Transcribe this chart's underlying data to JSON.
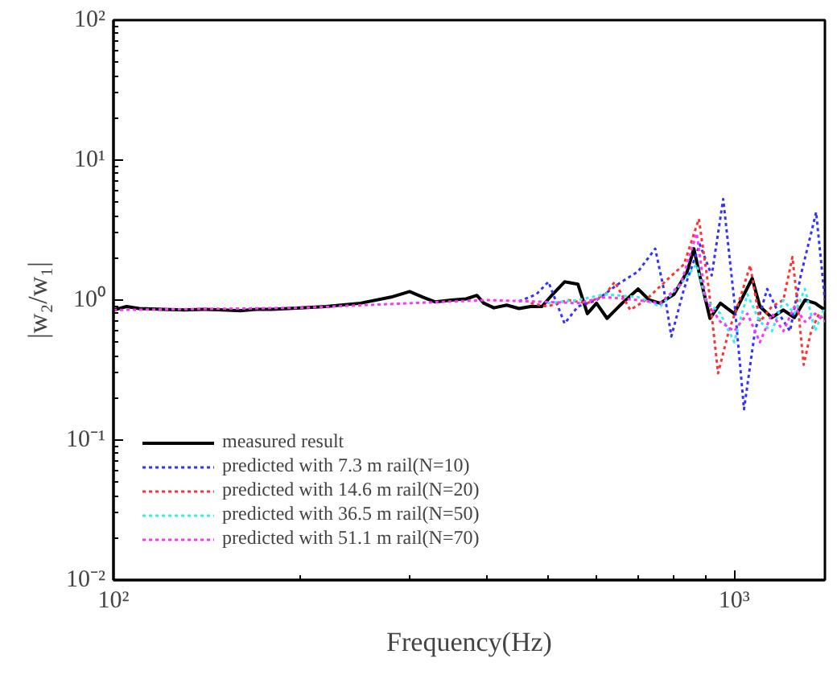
{
  "chart_data": {
    "type": "line",
    "xlabel": "Frequency(Hz)",
    "ylabel": "|w₂/w₁|",
    "log": "xy",
    "grid": false,
    "legend": "bottom left",
    "marker": "none",
    "xlim": [
      100,
      1400
    ],
    "ylim": [
      0.01,
      100
    ],
    "xticks": [
      {
        "value": 100,
        "label": "10²"
      },
      {
        "value": 1000,
        "label": "10³"
      }
    ],
    "yticks": [
      {
        "value": 0.01,
        "label": "10⁻²"
      },
      {
        "value": 0.1,
        "label": "10⁻¹"
      },
      {
        "value": 1,
        "label": "10⁰"
      },
      {
        "value": 10,
        "label": "10¹"
      },
      {
        "value": 100,
        "label": "10²"
      }
    ],
    "series": [
      {
        "name": "measured result",
        "color": "#000000",
        "line_style": "solid",
        "x": [
          100,
          105,
          110,
          120,
          130,
          140,
          150,
          160,
          170,
          180,
          200,
          220,
          250,
          280,
          300,
          315,
          330,
          350,
          370,
          385,
          395,
          410,
          430,
          450,
          470,
          490,
          510,
          533,
          560,
          580,
          600,
          624,
          660,
          700,
          730,
          760,
          800,
          840,
          861,
          880,
          914,
          950,
          1000,
          1069,
          1100,
          1150,
          1200,
          1250,
          1300,
          1350,
          1400
        ],
        "values": [
          0.85,
          0.9,
          0.87,
          0.86,
          0.85,
          0.86,
          0.85,
          0.84,
          0.86,
          0.86,
          0.88,
          0.9,
          0.95,
          1.05,
          1.15,
          1.05,
          0.97,
          1.0,
          1.02,
          1.08,
          0.95,
          0.88,
          0.92,
          0.87,
          0.9,
          0.9,
          1.1,
          1.35,
          1.3,
          0.8,
          0.95,
          0.74,
          0.95,
          1.2,
          1.0,
          0.95,
          1.1,
          1.6,
          2.33,
          1.5,
          0.74,
          0.95,
          0.8,
          1.43,
          0.9,
          0.75,
          0.85,
          0.75,
          1.0,
          0.95,
          0.85
        ]
      },
      {
        "name": "predicted with 7.3 m rail(N=10)",
        "color": "#3333ff",
        "line_style": "dotted",
        "x": [
          450,
          480,
          502,
          533,
          560,
          600,
          650,
          700,
          746,
          770,
          792,
          830,
          880,
          920,
          960,
          1000,
          1037,
          1080,
          1130,
          1180,
          1230,
          1280,
          1330,
          1355,
          1400
        ],
        "values": [
          0.98,
          1.1,
          1.35,
          0.68,
          0.9,
          1.0,
          1.3,
          1.6,
          2.33,
          1.2,
          0.55,
          1.2,
          2.5,
          1.5,
          5.27,
          1.0,
          0.166,
          0.6,
          1.2,
          0.8,
          0.6,
          1.5,
          3.0,
          4.24,
          1.0
        ]
      },
      {
        "name": "predicted with 14.6 m rail(N=20)",
        "color": "#ff3333",
        "line_style": "dotted",
        "x": [
          470,
          500,
          540,
          580,
          620,
          642,
          680,
          720,
          780,
          830,
          877,
          910,
          942,
          980,
          1020,
          1061,
          1100,
          1150,
          1200,
          1241,
          1270,
          1294,
          1330,
          1370,
          1400
        ],
        "values": [
          0.95,
          0.9,
          1.0,
          0.95,
          1.1,
          1.35,
          0.85,
          1.0,
          1.4,
          1.8,
          3.8,
          1.2,
          0.3,
          0.6,
          1.0,
          1.77,
          0.7,
          0.9,
          1.0,
          2.03,
          0.8,
          0.345,
          0.6,
          0.8,
          0.7
        ]
      },
      {
        "name": "predicted with 36.5 m rail(N=50)",
        "color": "#33eeee",
        "line_style": "dotted",
        "x": [
          500,
          560,
          620,
          700,
          760,
          820,
          870,
          900,
          950,
          1000,
          1050,
          1100,
          1150,
          1200,
          1250,
          1300,
          1350,
          1400
        ],
        "values": [
          0.95,
          1.0,
          1.1,
          1.05,
          0.9,
          1.3,
          1.8,
          1.0,
          0.8,
          0.5,
          1.1,
          0.7,
          0.6,
          1.0,
          0.8,
          1.2,
          0.6,
          0.9
        ]
      },
      {
        "name": "predicted with 51.1 m rail(N=70)",
        "color": "#ff33ff",
        "line_style": "dotted",
        "x": [
          100,
          200,
          300,
          400,
          500,
          560,
          620,
          700,
          760,
          820,
          870,
          900,
          950,
          1000,
          1050,
          1100,
          1150,
          1200,
          1250,
          1300,
          1350,
          1400
        ],
        "values": [
          0.85,
          0.88,
          0.95,
          1.0,
          0.97,
          0.95,
          1.05,
          1.0,
          0.95,
          1.3,
          3.0,
          1.0,
          0.7,
          0.6,
          0.8,
          0.5,
          0.8,
          0.6,
          0.9,
          0.7,
          0.8,
          0.7
        ]
      }
    ]
  }
}
